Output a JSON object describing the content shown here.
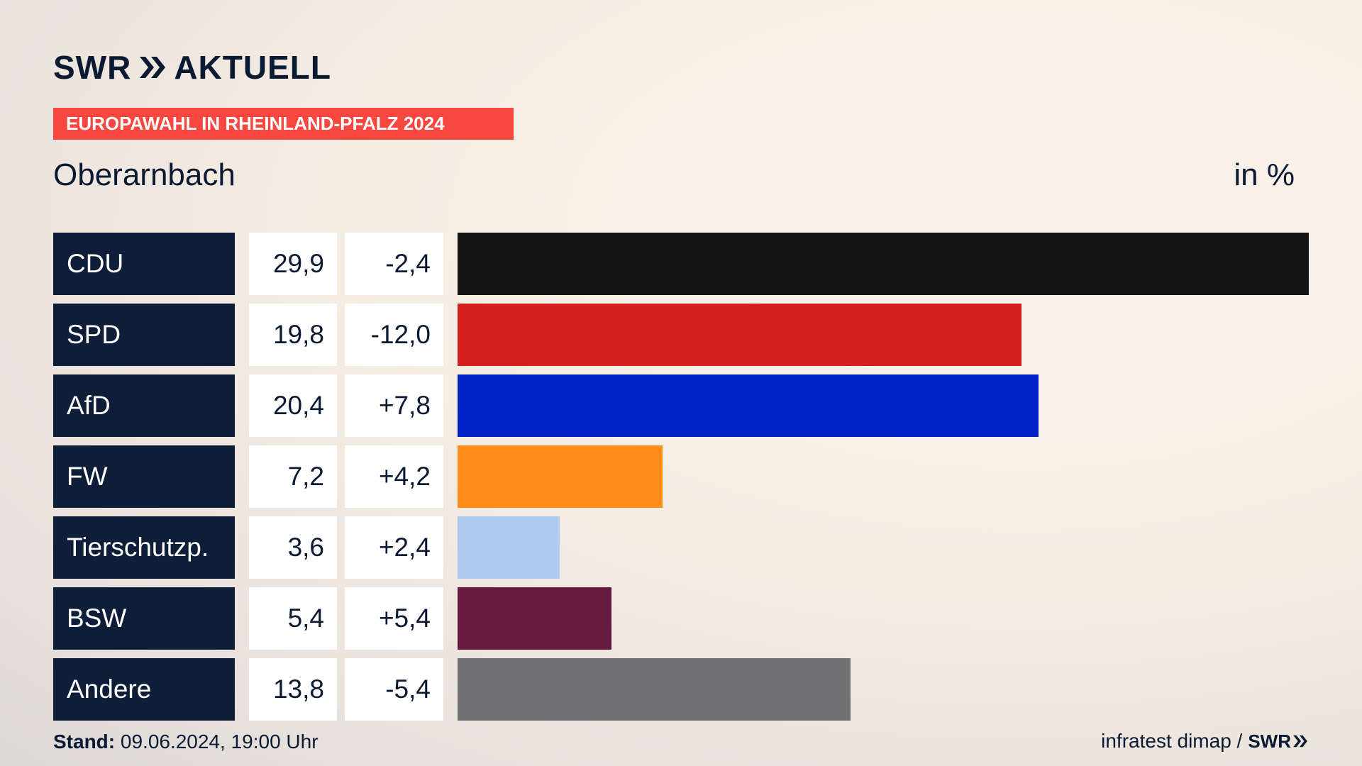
{
  "header": {
    "brand": "SWR",
    "brand_suffix": "AKTUELL",
    "tag": "EUROPAWAHL IN RHEINLAND-PFALZ 2024",
    "place": "Oberarnbach",
    "unit": "in %"
  },
  "chart_data": {
    "type": "bar",
    "orientation": "horizontal",
    "categories": [
      "CDU",
      "SPD",
      "AfD",
      "FW",
      "Tierschutzp.",
      "BSW",
      "Andere"
    ],
    "values": [
      29.9,
      19.8,
      20.4,
      7.2,
      3.6,
      5.4,
      13.8
    ],
    "value_labels": [
      "29,9",
      "19,8",
      "20,4",
      "7,2",
      "3,6",
      "5,4",
      "13,8"
    ],
    "changes": [
      "-2,4",
      "-12,0",
      "+7,8",
      "+4,2",
      "+2,4",
      "+5,4",
      "-5,4"
    ],
    "colors": [
      "#141414",
      "#d61f1f",
      "#0021c6",
      "#ff8c19",
      "#aecbee",
      "#661a3f",
      "#727274"
    ],
    "xlim": [
      0,
      29.9
    ]
  },
  "footer": {
    "stand_label": "Stand:",
    "stand_value": "09.06.2024, 19:00 Uhr",
    "source": "infratest dimap /",
    "source_brand": "SWR"
  }
}
